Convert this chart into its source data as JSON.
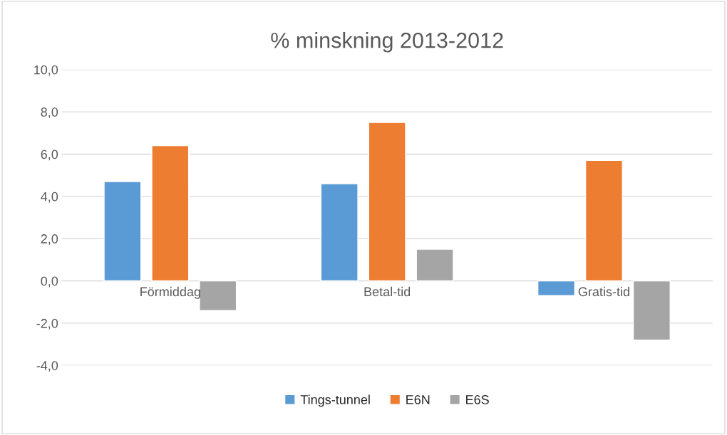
{
  "chart_data": {
    "type": "bar",
    "title": "% minskning 2013-2012",
    "categories": [
      "Förmiddag",
      "Betal-tid",
      "Gratis-tid"
    ],
    "series": [
      {
        "name": "Tings-tunnel",
        "color": "#5b9bd5",
        "values": [
          4.7,
          4.6,
          -0.7
        ]
      },
      {
        "name": "E6N",
        "color": "#ed7d31",
        "values": [
          6.4,
          7.5,
          5.7
        ]
      },
      {
        "name": "E6S",
        "color": "#a5a5a5",
        "values": [
          -1.4,
          1.5,
          -2.8
        ]
      }
    ],
    "ylim": [
      -4,
      10
    ],
    "yticks": [
      {
        "value": -4,
        "label": "-4,0"
      },
      {
        "value": -2,
        "label": "-2,0"
      },
      {
        "value": 0,
        "label": "0,0"
      },
      {
        "value": 2,
        "label": "2,0"
      },
      {
        "value": 4,
        "label": "4,0"
      },
      {
        "value": 6,
        "label": "6,0"
      },
      {
        "value": 8,
        "label": "8,0"
      },
      {
        "value": 10,
        "label": "10,0"
      }
    ],
    "grid": "y",
    "legend": "bottom"
  }
}
